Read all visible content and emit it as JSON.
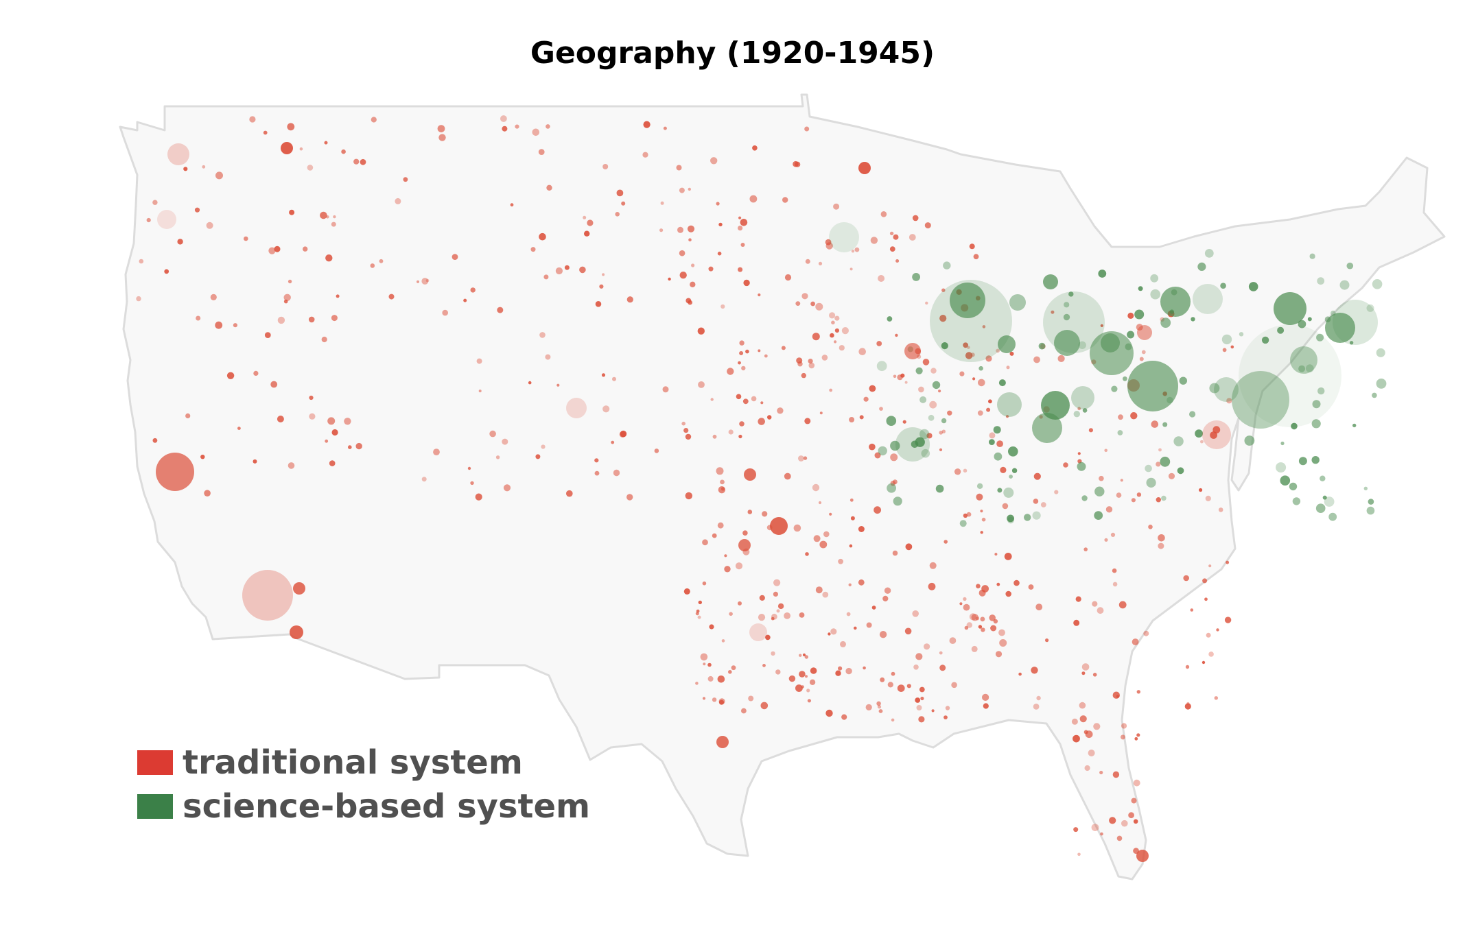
{
  "title": "Geography (1920-1945)",
  "colors": {
    "traditional": "#dc4d37",
    "science": "#4a8c4f",
    "land": "#f8f8f8",
    "border": "#dcdcdc"
  },
  "legend": [
    {
      "label": "traditional system",
      "color": "#dc3b32"
    },
    {
      "label": "science-based system",
      "color": "#3b8048"
    }
  ]
}
